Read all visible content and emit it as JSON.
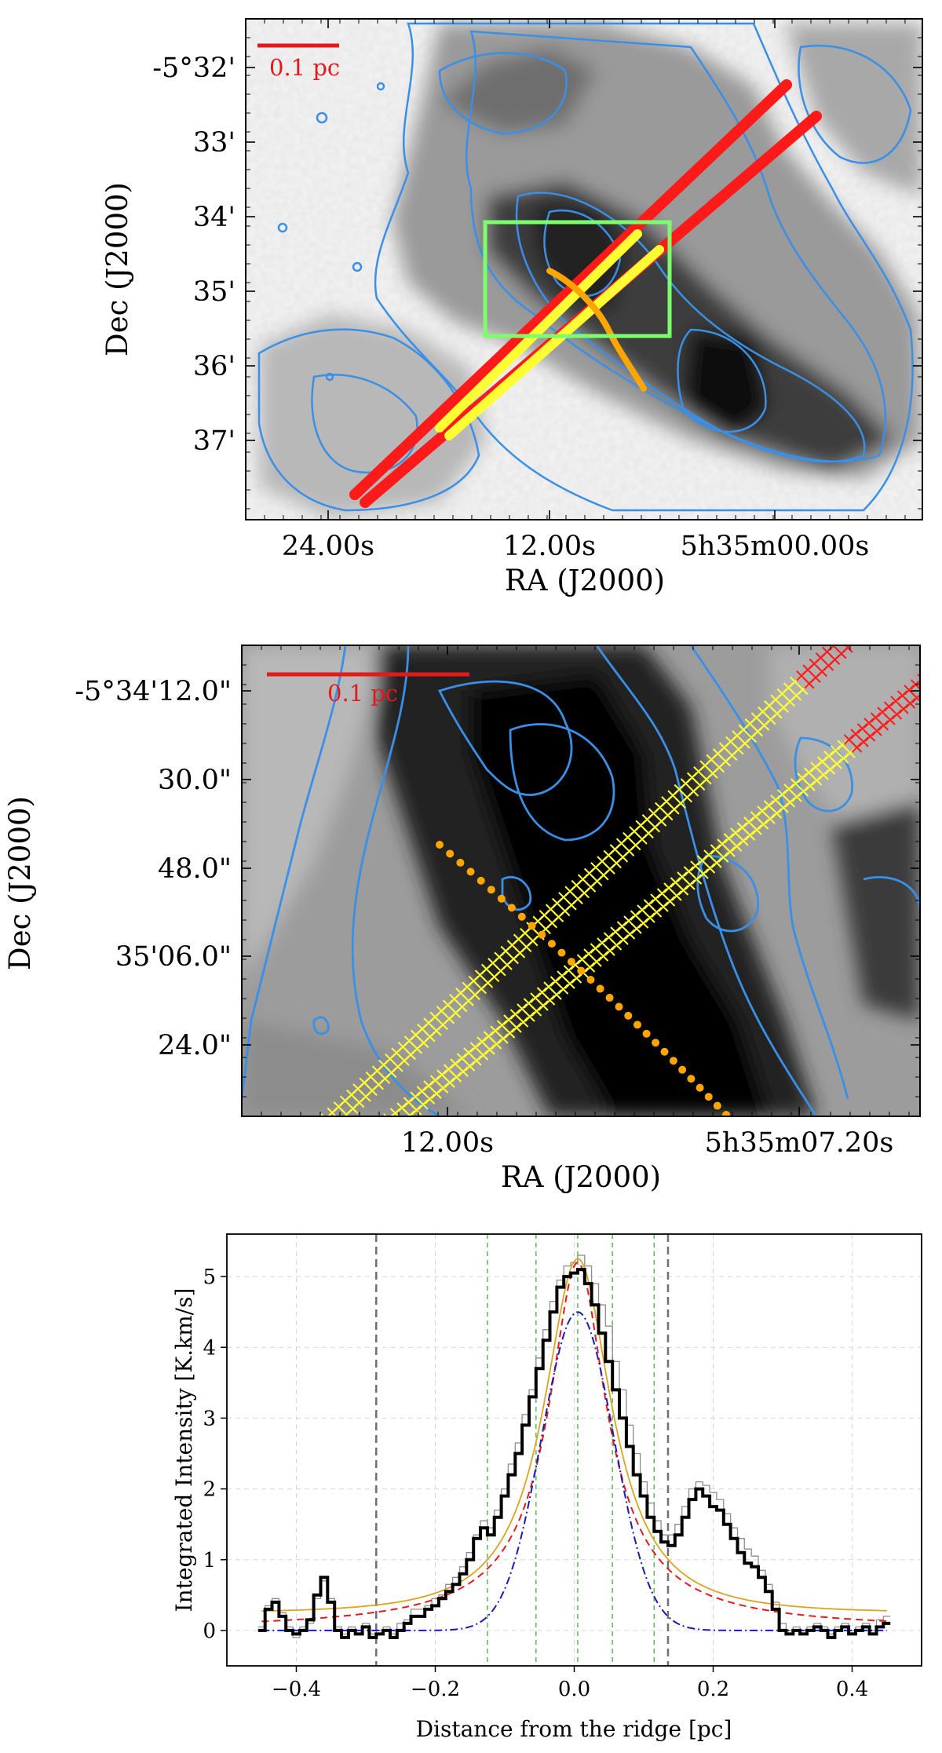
{
  "colors": {
    "contour": "#3a8fe6",
    "red_marker": "#ff1a1a",
    "yellow_marker": "#ffff33",
    "ridge": "#ffa500",
    "zoom_box": "#7cff6b",
    "scale_bar": "#e31a1c",
    "data_black": "#000000",
    "data_gray": "#8c8c8c",
    "fit_red": "#e31a1c",
    "fit_blue": "#1a1ab3",
    "fit_gold": "#d9a520",
    "vline_gray": "#707070",
    "vline_green": "#5cb85c"
  },
  "map_top": {
    "scale_bar_label": "0.1 pc",
    "y_ticks": [
      "-5°32'",
      "33'",
      "34'",
      "35'",
      "36'",
      "37'"
    ],
    "x_ticks": [
      "24.00s",
      "12.00s",
      "5h35m00.00s"
    ],
    "xlabel": "RA (J2000)",
    "ylabel": "Dec (J2000)"
  },
  "map_zoom": {
    "scale_bar_label": "0.1 pc",
    "y_ticks": [
      "-5°34'12.0\"",
      "30.0\"",
      "48.0\"",
      "35'06.0\"",
      "24.0\""
    ],
    "x_ticks": [
      "12.00s",
      "5h35m07.20s"
    ],
    "xlabel": "RA (J2000)",
    "ylabel": "Dec (J2000)"
  },
  "chart_data": {
    "type": "line",
    "xlabel": "Distance from the ridge [pc]",
    "ylabel": "Integrated Intensity [K.km/s]",
    "xlim": [
      -0.5,
      0.5
    ],
    "ylim": [
      -0.5,
      5.6
    ],
    "x_ticks": [
      -0.4,
      -0.2,
      0.0,
      0.2,
      0.4
    ],
    "y_ticks": [
      0,
      1,
      2,
      3,
      4,
      5
    ],
    "x_tick_labels": [
      "−0.4",
      "−0.2",
      "0.0",
      "0.2",
      "0.4"
    ],
    "y_tick_labels": [
      "0",
      "1",
      "2",
      "3",
      "4",
      "5"
    ],
    "grid": true,
    "vlines_gray": [
      -0.285,
      0.135
    ],
    "vlines_green": [
      -0.125,
      -0.055,
      0.005,
      0.055,
      0.115
    ],
    "series_profile": {
      "x": [
        -0.45,
        -0.44,
        -0.43,
        -0.42,
        -0.41,
        -0.4,
        -0.39,
        -0.38,
        -0.37,
        -0.36,
        -0.35,
        -0.34,
        -0.33,
        -0.32,
        -0.31,
        -0.3,
        -0.29,
        -0.28,
        -0.27,
        -0.26,
        -0.25,
        -0.24,
        -0.23,
        -0.22,
        -0.21,
        -0.2,
        -0.19,
        -0.18,
        -0.17,
        -0.16,
        -0.15,
        -0.14,
        -0.13,
        -0.12,
        -0.11,
        -0.1,
        -0.09,
        -0.08,
        -0.07,
        -0.06,
        -0.05,
        -0.04,
        -0.03,
        -0.02,
        -0.01,
        0.0,
        0.01,
        0.02,
        0.03,
        0.04,
        0.05,
        0.06,
        0.07,
        0.08,
        0.09,
        0.1,
        0.11,
        0.12,
        0.13,
        0.14,
        0.15,
        0.16,
        0.17,
        0.18,
        0.19,
        0.2,
        0.21,
        0.22,
        0.23,
        0.24,
        0.25,
        0.26,
        0.27,
        0.28,
        0.29,
        0.3,
        0.31,
        0.32,
        0.33,
        0.34,
        0.35,
        0.36,
        0.37,
        0.38,
        0.39,
        0.4,
        0.41,
        0.42,
        0.43,
        0.44,
        0.45
      ],
      "y": [
        0.0,
        0.3,
        0.4,
        0.2,
        0.0,
        -0.05,
        0.0,
        0.15,
        0.5,
        0.75,
        0.4,
        0.0,
        -0.1,
        0.0,
        -0.05,
        0.05,
        -0.1,
        -0.05,
        0.0,
        -0.1,
        0.0,
        0.1,
        0.2,
        0.2,
        0.3,
        0.35,
        0.45,
        0.55,
        0.65,
        0.8,
        1.0,
        1.3,
        1.45,
        1.35,
        1.6,
        1.9,
        2.2,
        2.5,
        2.9,
        3.3,
        3.7,
        4.1,
        4.5,
        4.85,
        5.0,
        5.05,
        5.1,
        4.9,
        4.6,
        4.2,
        3.8,
        3.4,
        3.0,
        2.6,
        2.2,
        1.9,
        1.6,
        1.4,
        1.25,
        1.2,
        1.35,
        1.6,
        1.85,
        2.0,
        1.9,
        1.75,
        1.7,
        1.5,
        1.3,
        1.1,
        0.95,
        0.9,
        0.75,
        0.55,
        0.3,
        0.0,
        -0.05,
        0.0,
        -0.05,
        0.0,
        0.05,
        0.0,
        -0.1,
        0.0,
        0.05,
        -0.05,
        0.0,
        0.05,
        -0.05,
        0.05,
        0.1
      ],
      "y_gray": [
        0.05,
        0.35,
        0.45,
        0.25,
        0.05,
        -0.1,
        0.05,
        0.1,
        0.45,
        0.7,
        0.45,
        0.05,
        -0.05,
        0.05,
        0.0,
        0.1,
        -0.05,
        0.0,
        0.05,
        -0.05,
        0.1,
        0.15,
        0.3,
        0.3,
        0.35,
        0.45,
        0.5,
        0.65,
        0.75,
        0.9,
        1.1,
        1.35,
        1.55,
        1.45,
        1.7,
        2.0,
        2.35,
        2.65,
        3.05,
        3.4,
        3.85,
        4.25,
        4.65,
        4.95,
        5.15,
        5.2,
        5.3,
        5.15,
        4.9,
        4.6,
        4.3,
        3.8,
        3.4,
        2.9,
        2.5,
        2.1,
        1.8,
        1.55,
        1.35,
        1.35,
        1.5,
        1.75,
        2.0,
        2.1,
        2.05,
        1.95,
        1.85,
        1.65,
        1.45,
        1.3,
        1.15,
        1.05,
        0.85,
        0.65,
        0.4,
        0.1,
        0.0,
        0.05,
        0.0,
        0.05,
        0.1,
        0.05,
        -0.05,
        0.05,
        0.1,
        0.0,
        0.05,
        0.1,
        0.0,
        0.15,
        0.2
      ]
    },
    "fit_params": {
      "gaussian": {
        "amp": 4.5,
        "sigma": 0.052,
        "x0": 0.005
      },
      "plummer": {
        "amp": 5.2,
        "r0": 0.045,
        "p": 2.6,
        "x0": 0.005
      },
      "lorentz": {
        "amp": 5.25,
        "r0": 0.06,
        "x0": 0.005
      }
    }
  }
}
